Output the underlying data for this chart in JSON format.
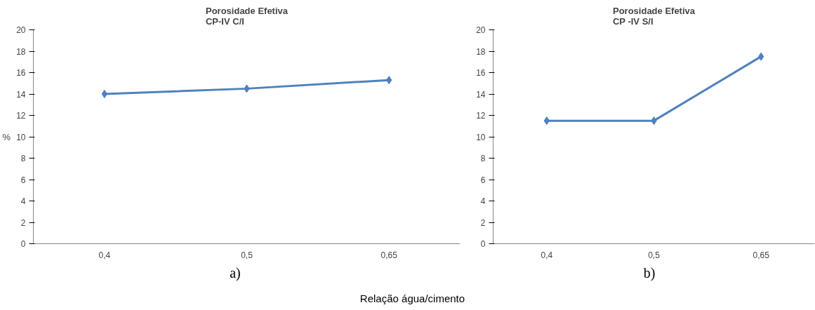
{
  "chart_data": [
    {
      "type": "line",
      "title": "Porosidade Efetiva\nCP-IV C/I",
      "ylabel": "%",
      "categories": [
        "0,4",
        "0,5",
        "0,65"
      ],
      "series": [
        {
          "color": "#4f81bd",
          "values": [
            14,
            14.5,
            15.3
          ]
        }
      ],
      "ylim": [
        0,
        20
      ],
      "yticks": [
        0,
        2,
        4,
        6,
        8,
        10,
        12,
        14,
        16,
        18,
        20
      ],
      "marker": "diamond",
      "annotations": [
        "a)",
        "Relação água/cimento"
      ]
    },
    {
      "type": "line",
      "title": "Porosidade Efetiva\nCP -IV S/I",
      "categories": [
        "0,4",
        "0,5",
        "0,65"
      ],
      "series": [
        {
          "color": "#4f81bd",
          "values": [
            11.5,
            11.5,
            17.5
          ]
        }
      ],
      "ylim": [
        0,
        20
      ],
      "yticks": [
        0,
        2,
        4,
        6,
        8,
        10,
        12,
        14,
        16,
        18,
        20
      ],
      "marker": "diamond",
      "annotations": [
        "b)"
      ]
    }
  ]
}
